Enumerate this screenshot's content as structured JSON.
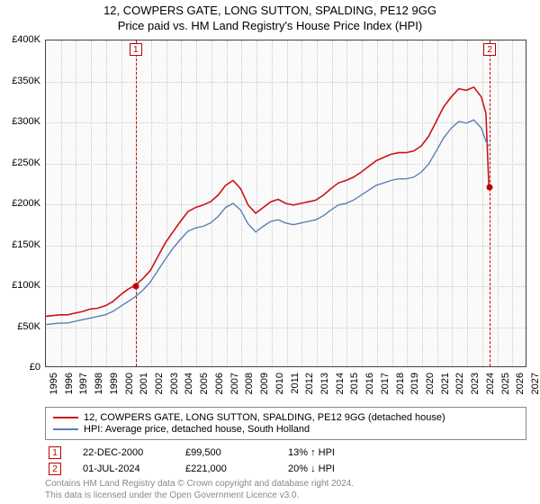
{
  "title_line1": "12, COWPERS GATE, LONG SUTTON, SPALDING, PE12 9GG",
  "title_line2": "Price paid vs. HM Land Registry's House Price Index (HPI)",
  "chart": {
    "type": "line",
    "background_color": "#fafafa",
    "grid_color": "#c8c8c8",
    "axis_color": "#444444",
    "y": {
      "min": 0,
      "max": 400000,
      "step": 50000,
      "ticks": [
        "£0",
        "£50K",
        "£100K",
        "£150K",
        "£200K",
        "£250K",
        "£300K",
        "£350K",
        "£400K"
      ],
      "label_fontsize": 11
    },
    "x": {
      "min": 1995,
      "max": 2027,
      "step": 1,
      "ticks": [
        "1995",
        "1996",
        "1997",
        "1998",
        "1999",
        "2000",
        "2001",
        "2002",
        "2003",
        "2004",
        "2005",
        "2006",
        "2007",
        "2008",
        "2009",
        "2010",
        "2011",
        "2012",
        "2013",
        "2014",
        "2015",
        "2016",
        "2017",
        "2018",
        "2019",
        "2020",
        "2021",
        "2022",
        "2023",
        "2024",
        "2025",
        "2026",
        "2027"
      ],
      "label_fontsize": 11,
      "label_rotation": -90
    },
    "series": [
      {
        "name": "property",
        "label": "12, COWPERS GATE, LONG SUTTON, SPALDING, PE12 9GG (detached house)",
        "color": "#cc1417",
        "line_width": 1.6,
        "data": [
          [
            1995,
            62000
          ],
          [
            1995.5,
            63000
          ],
          [
            1996,
            64000
          ],
          [
            1996.5,
            64000
          ],
          [
            1997,
            66000
          ],
          [
            1997.5,
            68000
          ],
          [
            1998,
            71000
          ],
          [
            1998.5,
            72000
          ],
          [
            1999,
            75000
          ],
          [
            1999.5,
            80000
          ],
          [
            2000,
            88000
          ],
          [
            2000.5,
            95000
          ],
          [
            2001,
            100000
          ],
          [
            2001.5,
            108000
          ],
          [
            2002,
            118000
          ],
          [
            2002.5,
            135000
          ],
          [
            2003,
            152000
          ],
          [
            2003.5,
            165000
          ],
          [
            2004,
            178000
          ],
          [
            2004.5,
            190000
          ],
          [
            2005,
            195000
          ],
          [
            2005.5,
            198000
          ],
          [
            2006,
            202000
          ],
          [
            2006.5,
            210000
          ],
          [
            2007,
            222000
          ],
          [
            2007.5,
            228000
          ],
          [
            2008,
            218000
          ],
          [
            2008.5,
            198000
          ],
          [
            2009,
            188000
          ],
          [
            2009.5,
            195000
          ],
          [
            2010,
            202000
          ],
          [
            2010.5,
            205000
          ],
          [
            2011,
            200000
          ],
          [
            2011.5,
            198000
          ],
          [
            2012,
            200000
          ],
          [
            2012.5,
            202000
          ],
          [
            2013,
            204000
          ],
          [
            2013.5,
            210000
          ],
          [
            2014,
            218000
          ],
          [
            2014.5,
            225000
          ],
          [
            2015,
            228000
          ],
          [
            2015.5,
            232000
          ],
          [
            2016,
            238000
          ],
          [
            2016.5,
            245000
          ],
          [
            2017,
            252000
          ],
          [
            2017.5,
            256000
          ],
          [
            2018,
            260000
          ],
          [
            2018.5,
            262000
          ],
          [
            2019,
            262000
          ],
          [
            2019.5,
            264000
          ],
          [
            2020,
            270000
          ],
          [
            2020.5,
            282000
          ],
          [
            2021,
            300000
          ],
          [
            2021.5,
            318000
          ],
          [
            2022,
            330000
          ],
          [
            2022.5,
            340000
          ],
          [
            2023,
            338000
          ],
          [
            2023.5,
            342000
          ],
          [
            2024,
            330000
          ],
          [
            2024.3,
            310000
          ],
          [
            2024.5,
            221000
          ]
        ]
      },
      {
        "name": "hpi",
        "label": "HPI: Average price, detached house, South Holland",
        "color": "#5b7fb5",
        "line_width": 1.4,
        "data": [
          [
            1995,
            52000
          ],
          [
            1995.5,
            53000
          ],
          [
            1996,
            54000
          ],
          [
            1996.5,
            54000
          ],
          [
            1997,
            56000
          ],
          [
            1997.5,
            58000
          ],
          [
            1998,
            60000
          ],
          [
            1998.5,
            62000
          ],
          [
            1999,
            64000
          ],
          [
            1999.5,
            68000
          ],
          [
            2000,
            74000
          ],
          [
            2000.5,
            80000
          ],
          [
            2001,
            86000
          ],
          [
            2001.5,
            94000
          ],
          [
            2002,
            104000
          ],
          [
            2002.5,
            118000
          ],
          [
            2003,
            132000
          ],
          [
            2003.5,
            145000
          ],
          [
            2004,
            156000
          ],
          [
            2004.5,
            166000
          ],
          [
            2005,
            170000
          ],
          [
            2005.5,
            172000
          ],
          [
            2006,
            176000
          ],
          [
            2006.5,
            184000
          ],
          [
            2007,
            195000
          ],
          [
            2007.5,
            200000
          ],
          [
            2008,
            192000
          ],
          [
            2008.5,
            175000
          ],
          [
            2009,
            165000
          ],
          [
            2009.5,
            172000
          ],
          [
            2010,
            178000
          ],
          [
            2010.5,
            180000
          ],
          [
            2011,
            176000
          ],
          [
            2011.5,
            174000
          ],
          [
            2012,
            176000
          ],
          [
            2012.5,
            178000
          ],
          [
            2013,
            180000
          ],
          [
            2013.5,
            185000
          ],
          [
            2014,
            192000
          ],
          [
            2014.5,
            198000
          ],
          [
            2015,
            200000
          ],
          [
            2015.5,
            204000
          ],
          [
            2016,
            210000
          ],
          [
            2016.5,
            216000
          ],
          [
            2017,
            222000
          ],
          [
            2017.5,
            225000
          ],
          [
            2018,
            228000
          ],
          [
            2018.5,
            230000
          ],
          [
            2019,
            230000
          ],
          [
            2019.5,
            232000
          ],
          [
            2020,
            238000
          ],
          [
            2020.5,
            248000
          ],
          [
            2021,
            264000
          ],
          [
            2021.5,
            280000
          ],
          [
            2022,
            292000
          ],
          [
            2022.5,
            300000
          ],
          [
            2023,
            298000
          ],
          [
            2023.5,
            302000
          ],
          [
            2024,
            292000
          ],
          [
            2024.3,
            276000
          ],
          [
            2024.5,
            270000
          ]
        ]
      }
    ],
    "markers": [
      {
        "id": "1",
        "x": 2000.97,
        "y": 99500
      },
      {
        "id": "2",
        "x": 2024.5,
        "y": 221000
      }
    ],
    "marker_color": "#c00000"
  },
  "legend": {
    "items": [
      {
        "color": "#cc1417",
        "label": "12, COWPERS GATE, LONG SUTTON, SPALDING, PE12 9GG (detached house)"
      },
      {
        "color": "#5b7fb5",
        "label": "HPI: Average price, detached house, South Holland"
      }
    ]
  },
  "annotations": [
    {
      "id": "1",
      "date": "22-DEC-2000",
      "price": "£99,500",
      "delta": "13% ↑ HPI"
    },
    {
      "id": "2",
      "date": "01-JUL-2024",
      "price": "£221,000",
      "delta": "20% ↓ HPI"
    }
  ],
  "credits_line1": "Contains HM Land Registry data © Crown copyright and database right 2024.",
  "credits_line2": "This data is licensed under the Open Government Licence v3.0."
}
